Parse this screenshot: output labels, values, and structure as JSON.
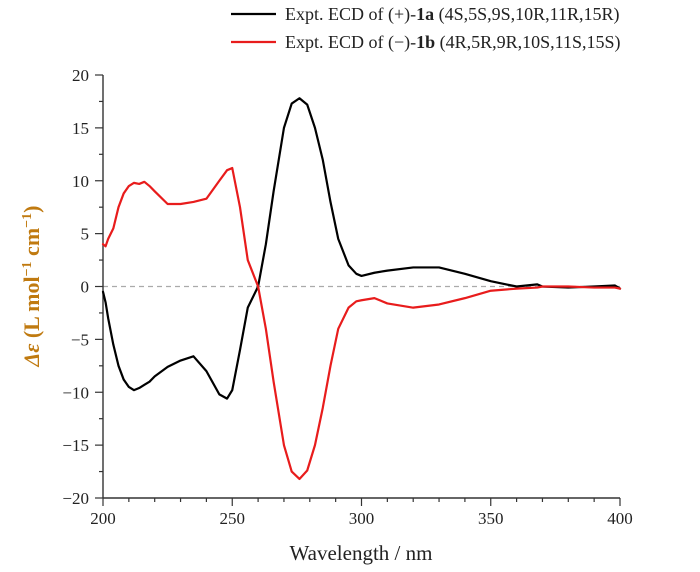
{
  "chart_data": {
    "type": "line",
    "title": "",
    "xlabel": "Wavelength / nm",
    "ylabel_prefix": "Δε",
    "ylabel_units": "(L mol",
    "ylabel_sup1": "−1",
    "ylabel_mid": " cm",
    "ylabel_sup2": "−1",
    "ylabel_close": ")",
    "xlim": [
      200,
      400
    ],
    "ylim": [
      -20,
      20
    ],
    "xticks": [
      200,
      250,
      300,
      350,
      400
    ],
    "yticks": [
      20,
      15,
      10,
      5,
      0,
      -5,
      -10,
      -15,
      -20
    ],
    "zero_line": {
      "style": "dashed",
      "color": "#aaaaaa"
    },
    "legend_position": "top-right",
    "series": [
      {
        "name": "Expt. ECD of (+)-1a (4S,5S,9S,10R,11R,15R)",
        "legend_prefix": "Expt. ECD of (+)-",
        "legend_compound": "1a",
        "legend_config": "(4S,5S,9S,10R,11R,15R)",
        "color": "#000000",
        "x": [
          200,
          201,
          202,
          204,
          206,
          208,
          210,
          212,
          214,
          216,
          218,
          220,
          225,
          230,
          235,
          240,
          245,
          248,
          250,
          253,
          256,
          260,
          263,
          266,
          270,
          273,
          276,
          279,
          282,
          285,
          288,
          291,
          295,
          298,
          300,
          305,
          310,
          320,
          330,
          340,
          350,
          360,
          368,
          370,
          380,
          390,
          398,
          400
        ],
        "values": [
          -0.5,
          -1.5,
          -3.0,
          -5.5,
          -7.5,
          -8.8,
          -9.5,
          -9.8,
          -9.6,
          -9.3,
          -9.0,
          -8.5,
          -7.6,
          -7.0,
          -6.6,
          -8.0,
          -10.2,
          -10.6,
          -9.8,
          -6.0,
          -2.0,
          0.0,
          4.0,
          9.0,
          15.0,
          17.3,
          17.8,
          17.2,
          15.0,
          12.0,
          8.0,
          4.5,
          2.0,
          1.2,
          1.0,
          1.3,
          1.5,
          1.8,
          1.8,
          1.2,
          0.5,
          0.0,
          0.2,
          0.0,
          -0.1,
          0.0,
          0.1,
          -0.2
        ]
      },
      {
        "name": "Expt. ECD of (−)-1b (4R,5R,9R,10S,11S,15S)",
        "legend_prefix": "Expt. ECD of (−)-",
        "legend_compound": "1b",
        "legend_config": "(4R,5R,9R,10S,11S,15S)",
        "color": "#e81c1c",
        "x": [
          200,
          201,
          202,
          204,
          206,
          208,
          210,
          212,
          214,
          216,
          218,
          220,
          225,
          230,
          235,
          240,
          245,
          248,
          250,
          253,
          256,
          260,
          263,
          266,
          270,
          273,
          276,
          279,
          282,
          285,
          288,
          291,
          295,
          298,
          300,
          305,
          310,
          320,
          330,
          340,
          350,
          360,
          368,
          370,
          380,
          390,
          398,
          400
        ],
        "values": [
          4.0,
          3.8,
          4.5,
          5.5,
          7.5,
          8.8,
          9.5,
          9.8,
          9.7,
          9.9,
          9.5,
          9.0,
          7.8,
          7.8,
          8.0,
          8.3,
          10.0,
          11.0,
          11.2,
          7.5,
          2.5,
          0.0,
          -4.0,
          -9.0,
          -15.0,
          -17.5,
          -18.2,
          -17.4,
          -15.0,
          -11.5,
          -7.5,
          -4.0,
          -2.0,
          -1.4,
          -1.3,
          -1.1,
          -1.6,
          -2.0,
          -1.7,
          -1.1,
          -0.4,
          -0.2,
          -0.1,
          0.0,
          0.0,
          -0.1,
          -0.1,
          -0.2
        ]
      }
    ]
  }
}
